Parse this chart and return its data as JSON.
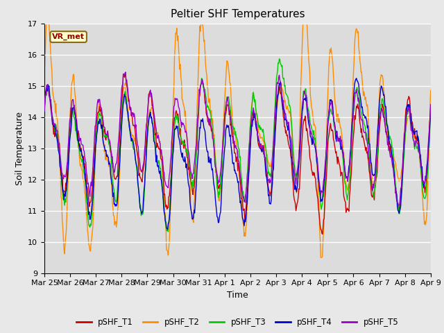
{
  "title": "Peltier SHF Temperatures",
  "ylabel": "Soil Temperature",
  "xlabel": "Time",
  "annotation": "VR_met",
  "ylim": [
    9.0,
    17.0
  ],
  "yticks": [
    9.0,
    10.0,
    11.0,
    12.0,
    13.0,
    14.0,
    15.0,
    16.0,
    17.0
  ],
  "xtick_labels": [
    "Mar 25",
    "Mar 26",
    "Mar 27",
    "Mar 28",
    "Mar 29",
    "Mar 30",
    "Mar 31",
    "Apr 1",
    "Apr 2",
    "Apr 3",
    "Apr 4",
    "Apr 5",
    "Apr 6",
    "Apr 7",
    "Apr 8",
    "Apr 9"
  ],
  "series_colors": [
    "#cc0000",
    "#ff8c00",
    "#00cc00",
    "#0000cc",
    "#9900cc"
  ],
  "series_names": [
    "pSHF_T1",
    "pSHF_T2",
    "pSHF_T3",
    "pSHF_T4",
    "pSHF_T5"
  ],
  "plot_bg_color": "#dcdcdc",
  "fig_bg_color": "#e8e8e8",
  "title_fontsize": 11,
  "tick_fontsize": 8,
  "axis_label_fontsize": 9,
  "linewidth": 1.0,
  "n_points": 672,
  "seed": 7
}
